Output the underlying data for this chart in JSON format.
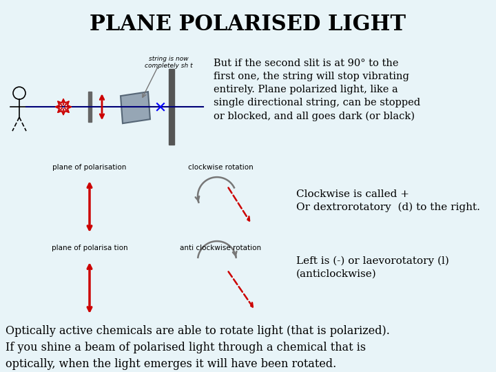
{
  "title": "PLANE POLARISED LIGHT",
  "title_fontsize": 22,
  "title_color": "#000000",
  "title_bg_color": "#b8dde8",
  "bg_color": "#e8f4f8",
  "main_text": "But if the second slit is at 90° to the\nfirst one, the string will stop vibrating\nentirely. Plane polarized light, like a\nsingle directional string, can be stopped\nor blocked, and all goes dark (or black)",
  "clockwise_label": "clockwise rotation",
  "anticlockwise_label": "anti clockwise rotation",
  "plane_pol_label1": "plane of polarisation",
  "plane_pol_label2": "plane of polarisa tion",
  "string_label": "string is now\ncompletely sh t",
  "clockwise_text": "Clockwise is called +\nOr dextrorotatory  (d) to the right.",
  "anticlockwise_text": "Left is (-) or laevorotatory (l)\n(anticlockwise)",
  "bottom_text": "Optically active chemicals are able to rotate light (that is polarized).\nIf you shine a beam of polarised light through a chemical that is\noptically, when the light emerges it will have been rotated.",
  "arrow_color": "#cc0000",
  "gray_arrow_color": "#777777",
  "dark_arrow_color": "#cc0000",
  "text_color": "#000000",
  "line_color": "#000077",
  "slit_color": "#555555",
  "polarizer_color": "#8899aa"
}
